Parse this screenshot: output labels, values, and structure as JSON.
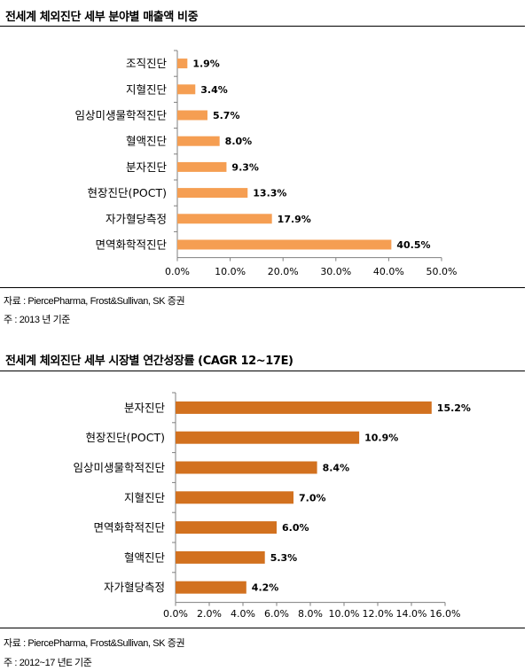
{
  "chart_data": [
    {
      "type": "bar",
      "orientation": "horizontal",
      "title": "전세계 체외진단 세부 분야별 매출액 비중",
      "categories": [
        "조직진단",
        "지혈진단",
        "임상미생물학적진단",
        "혈액진단",
        "분자진단",
        "현장진단(POCT)",
        "자가혈당측정",
        "면역화학적진단"
      ],
      "values": [
        1.9,
        3.4,
        5.7,
        8.0,
        9.3,
        13.3,
        17.9,
        40.5
      ],
      "value_labels": [
        "1.9%",
        "3.4%",
        "5.7%",
        "8.0%",
        "9.3%",
        "13.3%",
        "17.9%",
        "40.5%"
      ],
      "xlim": [
        0,
        50
      ],
      "xticks": [
        "0.0%",
        "10.0%",
        "20.0%",
        "30.0%",
        "40.0%",
        "50.0%"
      ],
      "bar_color": "#F59E52",
      "grid": false,
      "source": "자료 : PiercePharma, Frost&Sullivan, SK 증권",
      "note": "주 : 2013 년 기준"
    },
    {
      "type": "bar",
      "orientation": "horizontal",
      "title": "전세계 체외진단 세부 시장별 연간성장률 (CAGR 12~17E)",
      "categories": [
        "분자진단",
        "현장진단(POCT)",
        "임상미생물학적진단",
        "지혈진단",
        "면역화학적진단",
        "혈액진단",
        "자가혈당측정"
      ],
      "values": [
        15.2,
        10.9,
        8.4,
        7.0,
        6.0,
        5.3,
        4.2
      ],
      "value_labels": [
        "15.2%",
        "10.9%",
        "8.4%",
        "7.0%",
        "6.0%",
        "5.3%",
        "4.2%"
      ],
      "xlim": [
        0,
        16
      ],
      "xticks": [
        "0.0%",
        "2.0%",
        "4.0%",
        "6.0%",
        "8.0%",
        "10.0%",
        "12.0%",
        "14.0%",
        "16.0%"
      ],
      "bar_color": "#D2711F",
      "grid": false,
      "source": "자료 : PiercePharma, Frost&Sullivan, SK 증권",
      "note": "주 : 2012~17 년E 기준"
    }
  ]
}
